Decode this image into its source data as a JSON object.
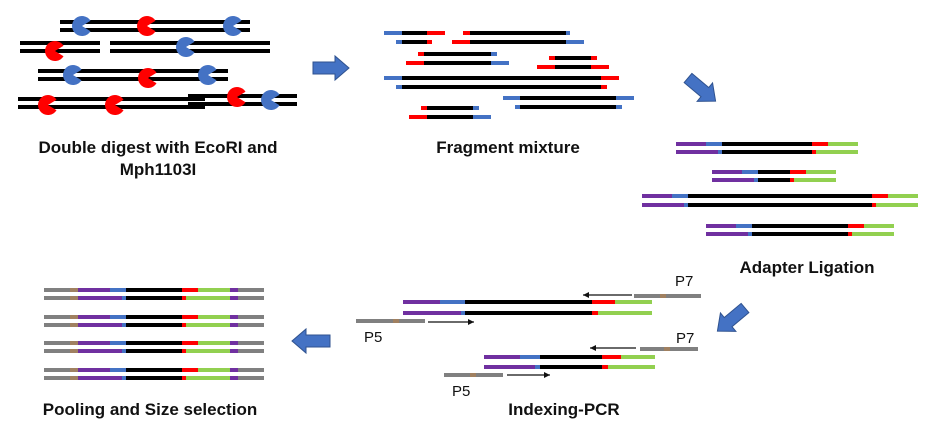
{
  "steps": {
    "digest_line1": "Double digest with EcoRI and",
    "digest_line2": "Mph1103I",
    "fragment": "Fragment mixture",
    "ligation": "Adapter Ligation",
    "pcr": "Indexing-PCR",
    "pooling": "Pooling and Size selection"
  },
  "primers": {
    "p7_top": "P7",
    "p5_top": "P5",
    "p7_bottom": "P7",
    "p5_bottom": "P5"
  },
  "colors": {
    "dna": "#000000",
    "ecori": "#ff0000",
    "mph1103i": "#4472c4",
    "adapter_p5": "#7030a0",
    "adapter_p7": "#92d050",
    "index_primer": "#808080",
    "index_tag": "#a08060",
    "arrow": "#4472c4"
  }
}
